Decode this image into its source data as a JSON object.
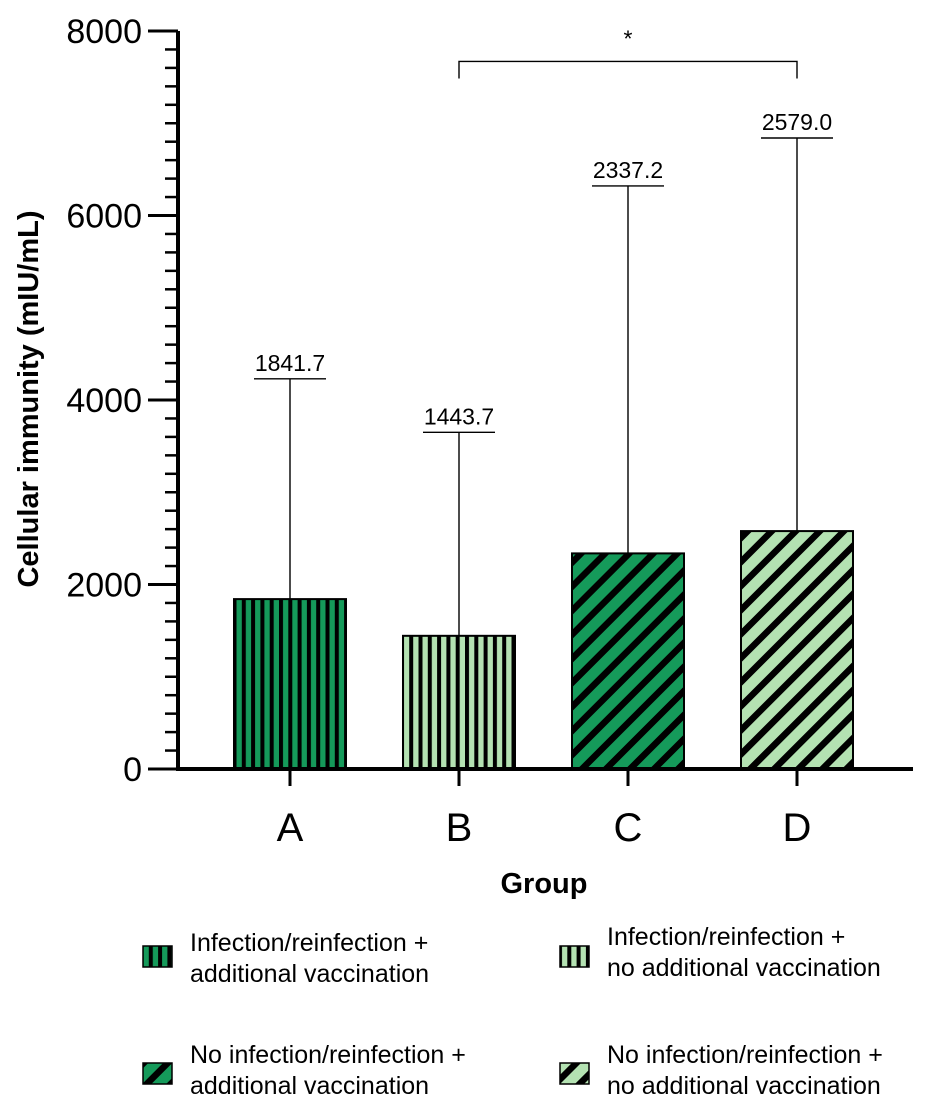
{
  "chart_data": {
    "type": "bar",
    "xlabel": "Group",
    "ylabel": "Cellular immunity (mIU/mL)",
    "ylim": [
      0,
      8000
    ],
    "major_ticks": [
      0,
      2000,
      4000,
      6000,
      8000
    ],
    "minor_tick_step": 200,
    "categories": [
      "A",
      "B",
      "C",
      "D"
    ],
    "values": [
      1841.7,
      1443.7,
      2337.2,
      2579.0
    ],
    "value_labels": [
      "1841.7",
      "1443.7",
      "2337.2",
      "2579.0"
    ],
    "error_upper": [
      4230,
      3650,
      6320,
      6840
    ],
    "significance": {
      "from": "B",
      "to": "D",
      "label": "*",
      "level": 7670
    },
    "series_styles": [
      {
        "fill": "#159a5a",
        "pattern": "vertical"
      },
      {
        "fill": "#b4e2b2",
        "pattern": "vertical"
      },
      {
        "fill": "#159a5a",
        "pattern": "diagonal"
      },
      {
        "fill": "#b4e2b2",
        "pattern": "diagonal"
      }
    ],
    "legend": [
      {
        "lines": [
          "Infection/reinfection +",
          "additional vaccination"
        ],
        "style": 0
      },
      {
        "lines": [
          "Infection/reinfection +",
          "no additional vaccination"
        ],
        "style": 1
      },
      {
        "lines": [
          "No infection/reinfection +",
          "additional vaccination"
        ],
        "style": 2
      },
      {
        "lines": [
          "No infection/reinfection +",
          "no additional vaccination"
        ],
        "style": 3
      }
    ],
    "legend_placement": "bottom",
    "grid": false
  }
}
